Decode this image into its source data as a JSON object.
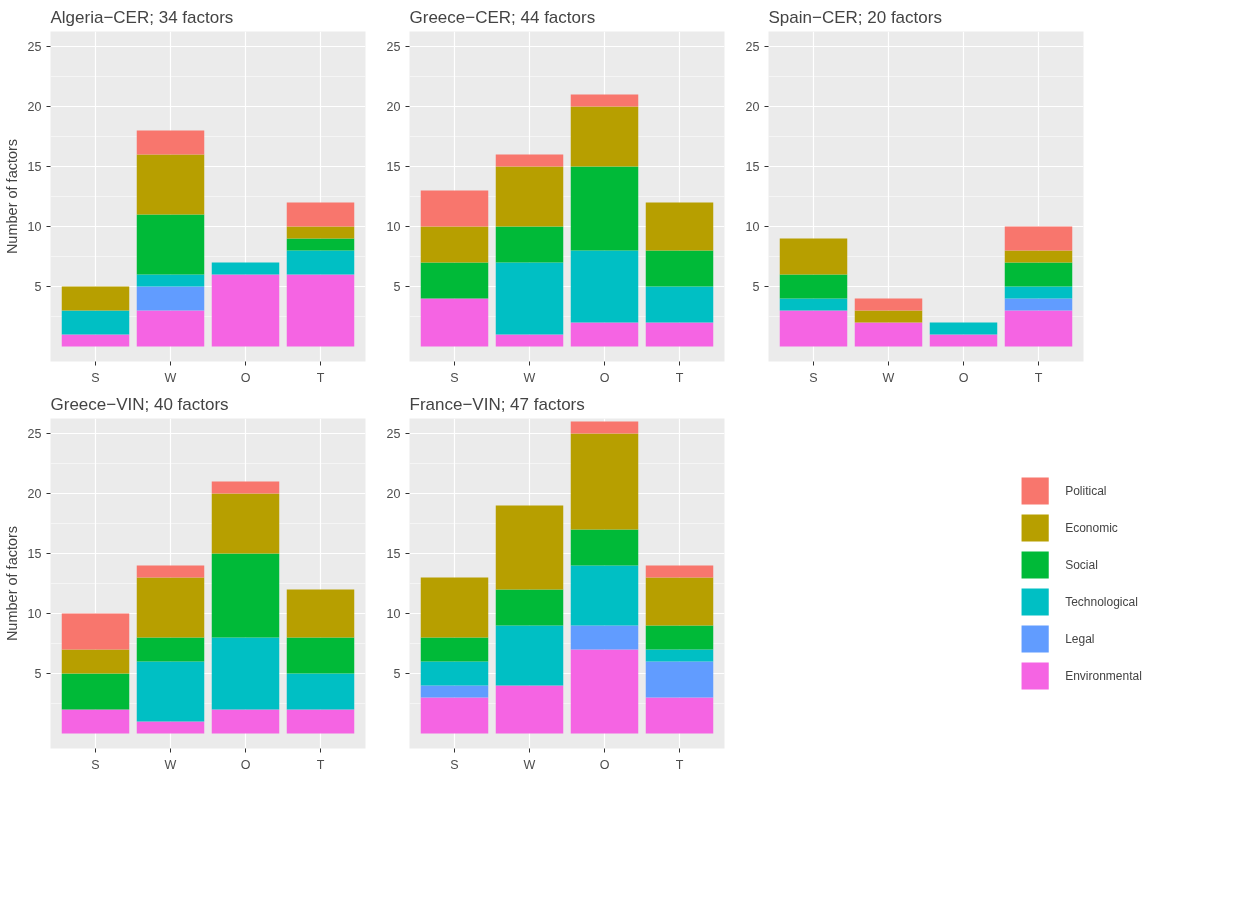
{
  "chart_data": [
    {
      "type": "bar",
      "title": "Algeria−CER; 34 factors",
      "ylabel": "Number of factors",
      "categories": [
        "S",
        "W",
        "O",
        "T"
      ],
      "stacked": true,
      "ylim": [
        -1.25,
        26.25
      ],
      "yticks": [
        5,
        10,
        15,
        20,
        25
      ],
      "grid": true,
      "series": [
        {
          "color": "#F564E3",
          "values": [
            1,
            3,
            6,
            6
          ]
        },
        {
          "color": "#619CFF",
          "values": [
            0,
            2,
            0,
            0
          ]
        },
        {
          "color": "#00BFC4",
          "values": [
            2,
            1,
            1,
            2
          ]
        },
        {
          "color": "#00BA38",
          "values": [
            0,
            5,
            0,
            1
          ]
        },
        {
          "color": "#B79F00",
          "values": [
            2,
            5,
            0,
            1
          ]
        },
        {
          "color": "#F8766D",
          "values": [
            0,
            2,
            0,
            2
          ]
        }
      ]
    },
    {
      "type": "bar",
      "title": "Greece−CER; 44 factors",
      "categories": [
        "S",
        "W",
        "O",
        "T"
      ],
      "stacked": true,
      "ylim": [
        -1.25,
        26.25
      ],
      "yticks": [
        5,
        10,
        15,
        20,
        25
      ],
      "grid": true,
      "series": [
        {
          "color": "#F564E3",
          "values": [
            4,
            1,
            2,
            2
          ]
        },
        {
          "color": "#619CFF",
          "values": [
            0,
            0,
            0,
            0
          ]
        },
        {
          "color": "#00BFC4",
          "values": [
            0,
            6,
            6,
            3
          ]
        },
        {
          "color": "#00BA38",
          "values": [
            3,
            3,
            7,
            3
          ]
        },
        {
          "color": "#B79F00",
          "values": [
            3,
            5,
            5,
            4
          ]
        },
        {
          "color": "#F8766D",
          "values": [
            3,
            1,
            1,
            0
          ]
        }
      ]
    },
    {
      "type": "bar",
      "title": "Spain−CER; 20 factors",
      "categories": [
        "S",
        "W",
        "O",
        "T"
      ],
      "stacked": true,
      "ylim": [
        -1.25,
        26.25
      ],
      "yticks": [
        5,
        10,
        15,
        20,
        25
      ],
      "grid": true,
      "series": [
        {
          "color": "#F564E3",
          "values": [
            3,
            2,
            1,
            3
          ]
        },
        {
          "color": "#619CFF",
          "values": [
            0,
            0,
            0,
            1
          ]
        },
        {
          "color": "#00BFC4",
          "values": [
            1,
            0,
            1,
            1
          ]
        },
        {
          "color": "#00BA38",
          "values": [
            2,
            0,
            0,
            2
          ]
        },
        {
          "color": "#B79F00",
          "values": [
            3,
            1,
            0,
            1
          ]
        },
        {
          "color": "#F8766D",
          "values": [
            0,
            1,
            0,
            2
          ]
        }
      ]
    },
    {
      "type": "bar",
      "title": "Greece−VIN; 40 factors",
      "ylabel": "Number of factors",
      "categories": [
        "S",
        "W",
        "O",
        "T"
      ],
      "stacked": true,
      "ylim": [
        -1.25,
        26.25
      ],
      "yticks": [
        5,
        10,
        15,
        20,
        25
      ],
      "grid": true,
      "series": [
        {
          "color": "#F564E3",
          "values": [
            2,
            1,
            2,
            2
          ]
        },
        {
          "color": "#619CFF",
          "values": [
            0,
            0,
            0,
            0
          ]
        },
        {
          "color": "#00BFC4",
          "values": [
            0,
            5,
            6,
            3
          ]
        },
        {
          "color": "#00BA38",
          "values": [
            3,
            2,
            7,
            3
          ]
        },
        {
          "color": "#B79F00",
          "values": [
            2,
            5,
            5,
            4
          ]
        },
        {
          "color": "#F8766D",
          "values": [
            3,
            1,
            1,
            0
          ]
        }
      ]
    },
    {
      "type": "bar",
      "title": "France−VIN; 47 factors",
      "categories": [
        "S",
        "W",
        "O",
        "T"
      ],
      "stacked": true,
      "ylim": [
        -1.25,
        26.25
      ],
      "yticks": [
        5,
        10,
        15,
        20,
        25
      ],
      "grid": true,
      "legend": "right",
      "series": [
        {
          "name": "Environmental",
          "color": "#F564E3",
          "values": [
            3,
            4,
            7,
            3
          ]
        },
        {
          "name": "Legal",
          "color": "#619CFF",
          "values": [
            1,
            0,
            2,
            3
          ]
        },
        {
          "name": "Technological",
          "color": "#00BFC4",
          "values": [
            2,
            5,
            5,
            1
          ]
        },
        {
          "name": "Social",
          "color": "#00BA38",
          "values": [
            2,
            3,
            3,
            2
          ]
        },
        {
          "name": "Economic",
          "color": "#B79F00",
          "values": [
            5,
            7,
            8,
            4
          ]
        },
        {
          "name": "Political",
          "color": "#F8766D",
          "values": [
            0,
            0,
            1,
            1
          ]
        }
      ]
    }
  ]
}
